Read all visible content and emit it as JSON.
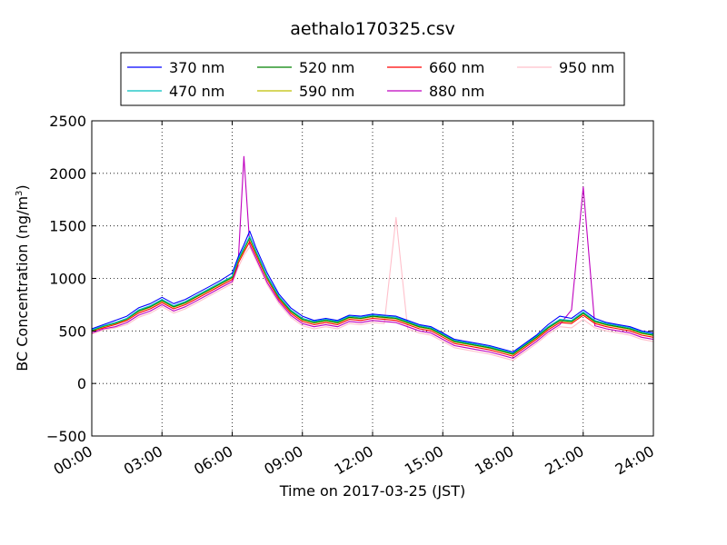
{
  "chart_data": {
    "type": "line",
    "title": "aethalo170325.csv",
    "xlabel": "Time on 2017-03-25 (JST)",
    "ylabel": "BC Concentration (ng/m",
    "ylabel_sup": "3",
    "ylabel_end": ")",
    "x_range": [
      0,
      24
    ],
    "ylim": [
      -500,
      2500
    ],
    "x_ticks": [
      0,
      3,
      6,
      9,
      12,
      15,
      18,
      21,
      24
    ],
    "x_tick_labels": [
      "00:00",
      "03:00",
      "06:00",
      "09:00",
      "12:00",
      "15:00",
      "18:00",
      "21:00",
      "24:00"
    ],
    "y_ticks": [
      -500,
      0,
      500,
      1000,
      1500,
      2000,
      2500
    ],
    "y_tick_labels": [
      "−500",
      "0",
      "500",
      "1000",
      "1500",
      "2000",
      "2500"
    ],
    "grid": true,
    "legend_position": "top-center",
    "x_hours": [
      0.0,
      0.5,
      1.0,
      1.5,
      2.0,
      2.5,
      3.0,
      3.5,
      4.0,
      4.5,
      5.0,
      5.5,
      6.0,
      6.25,
      6.5,
      6.75,
      7.0,
      7.5,
      8.0,
      8.5,
      9.0,
      9.5,
      10.0,
      10.5,
      11.0,
      11.5,
      12.0,
      12.5,
      13.0,
      13.5,
      14.0,
      14.5,
      15.0,
      15.5,
      16.0,
      16.5,
      17.0,
      17.5,
      18.0,
      18.5,
      19.0,
      19.5,
      20.0,
      20.5,
      21.0,
      21.5,
      22.0,
      22.5,
      23.0,
      23.5,
      24.0
    ],
    "series": [
      {
        "name": "370 nm",
        "color": "#0000ff",
        "values": [
          520,
          560,
          600,
          640,
          720,
          760,
          820,
          760,
          800,
          860,
          920,
          980,
          1050,
          1200,
          1320,
          1450,
          1300,
          1050,
          850,
          720,
          640,
          600,
          620,
          600,
          650,
          640,
          660,
          650,
          640,
          600,
          560,
          540,
          480,
          420,
          400,
          380,
          360,
          330,
          300,
          380,
          460,
          560,
          640,
          620,
          700,
          620,
          580,
          560,
          540,
          500,
          480
        ]
      },
      {
        "name": "470 nm",
        "color": "#00bfbf",
        "values": [
          510,
          550,
          580,
          620,
          700,
          740,
          800,
          740,
          780,
          840,
          900,
          960,
          1020,
          1180,
          1290,
          1400,
          1270,
          1020,
          830,
          700,
          620,
          590,
          610,
          590,
          640,
          630,
          650,
          640,
          630,
          590,
          550,
          530,
          470,
          410,
          390,
          370,
          350,
          320,
          290,
          370,
          450,
          540,
          610,
          600,
          680,
          600,
          570,
          550,
          530,
          490,
          470
        ]
      },
      {
        "name": "520 nm",
        "color": "#008000",
        "values": [
          505,
          545,
          575,
          615,
          690,
          730,
          790,
          730,
          770,
          830,
          890,
          950,
          1010,
          1170,
          1280,
          1390,
          1260,
          1010,
          820,
          690,
          610,
          580,
          600,
          580,
          630,
          620,
          640,
          630,
          620,
          580,
          540,
          520,
          460,
          400,
          380,
          360,
          340,
          310,
          280,
          360,
          440,
          530,
          600,
          590,
          670,
          590,
          560,
          540,
          520,
          480,
          460
        ]
      },
      {
        "name": "590 nm",
        "color": "#bfbf00",
        "values": [
          500,
          540,
          570,
          610,
          685,
          725,
          785,
          725,
          765,
          825,
          885,
          945,
          1005,
          1160,
          1270,
          1380,
          1250,
          1000,
          815,
          685,
          605,
          575,
          595,
          575,
          625,
          615,
          635,
          625,
          615,
          575,
          535,
          515,
          455,
          395,
          375,
          355,
          335,
          305,
          275,
          355,
          435,
          525,
          595,
          585,
          665,
          585,
          555,
          535,
          515,
          475,
          455
        ]
      },
      {
        "name": "660 nm",
        "color": "#ff0000",
        "values": [
          495,
          530,
          560,
          600,
          670,
          710,
          770,
          710,
          750,
          810,
          870,
          930,
          990,
          1140,
          1250,
          1350,
          1230,
          990,
          800,
          670,
          590,
          560,
          580,
          560,
          610,
          600,
          620,
          610,
          600,
          560,
          520,
          500,
          440,
          380,
          360,
          340,
          320,
          290,
          260,
          340,
          420,
          510,
          580,
          570,
          650,
          570,
          540,
          520,
          500,
          460,
          440
        ]
      },
      {
        "name": "880 nm",
        "color": "#bf00bf",
        "values": [
          480,
          520,
          540,
          580,
          650,
          690,
          750,
          690,
          730,
          790,
          850,
          910,
          970,
          1120,
          2160,
          1320,
          1200,
          960,
          780,
          650,
          570,
          540,
          560,
          540,
          590,
          580,
          600,
          590,
          580,
          540,
          500,
          480,
          420,
          360,
          340,
          320,
          300,
          270,
          240,
          320,
          400,
          490,
          560,
          700,
          1870,
          550,
          520,
          500,
          480,
          440,
          420
        ]
      },
      {
        "name": "950 nm",
        "color": "#ffc0cb",
        "values": [
          470,
          510,
          530,
          560,
          630,
          670,
          730,
          670,
          710,
          770,
          830,
          890,
          950,
          1100,
          1220,
          1300,
          1180,
          940,
          760,
          630,
          550,
          520,
          540,
          520,
          570,
          560,
          580,
          570,
          1580,
          520,
          480,
          460,
          400,
          340,
          320,
          300,
          280,
          250,
          220,
          300,
          380,
          470,
          540,
          530,
          610,
          530,
          500,
          480,
          460,
          420,
          400
        ]
      }
    ]
  }
}
